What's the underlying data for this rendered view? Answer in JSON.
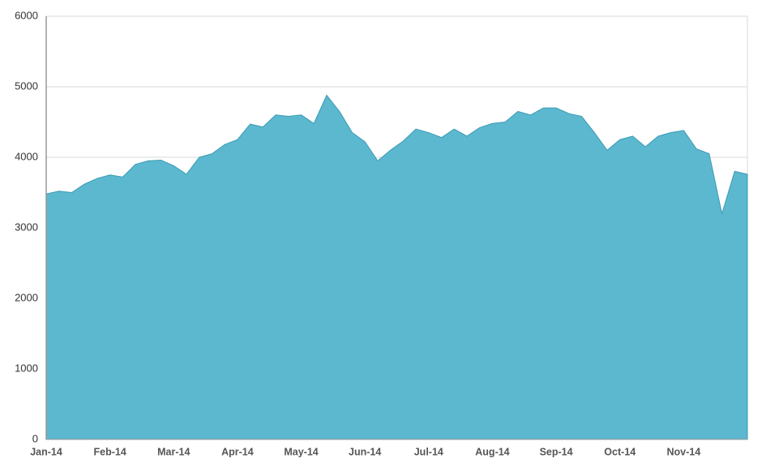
{
  "chart_data": {
    "type": "area",
    "categories": [
      "Jan-14",
      null,
      null,
      null,
      null,
      "Feb-14",
      null,
      null,
      null,
      null,
      "Mar-14",
      null,
      null,
      null,
      null,
      "Apr-14",
      null,
      null,
      null,
      null,
      "May-14",
      null,
      null,
      null,
      null,
      "Jun-14",
      null,
      null,
      null,
      null,
      "Jul-14",
      null,
      null,
      null,
      null,
      "Aug-14",
      null,
      null,
      null,
      null,
      "Sep-14",
      null,
      null,
      null,
      null,
      "Oct-14",
      null,
      null,
      null,
      null,
      "Nov-14",
      null,
      null,
      null,
      null,
      null
    ],
    "values": [
      3480,
      3520,
      3500,
      3620,
      3700,
      3750,
      3720,
      3900,
      3950,
      3960,
      3880,
      3760,
      4000,
      4050,
      4180,
      4250,
      4470,
      4430,
      4600,
      4580,
      4600,
      4480,
      4880,
      4650,
      4350,
      4220,
      3950,
      4100,
      4230,
      4400,
      4350,
      4280,
      4400,
      4300,
      4420,
      4480,
      4500,
      4650,
      4600,
      4700,
      4700,
      4620,
      4580,
      4350,
      4100,
      4250,
      4300,
      4150,
      4300,
      4350,
      4380,
      4120,
      4050,
      3200,
      3800,
      3760
    ],
    "color": "#5bb8cf",
    "ylim": [
      0,
      6000
    ],
    "yticks": [
      0,
      1000,
      2000,
      3000,
      4000,
      5000,
      6000
    ],
    "grid": true
  }
}
